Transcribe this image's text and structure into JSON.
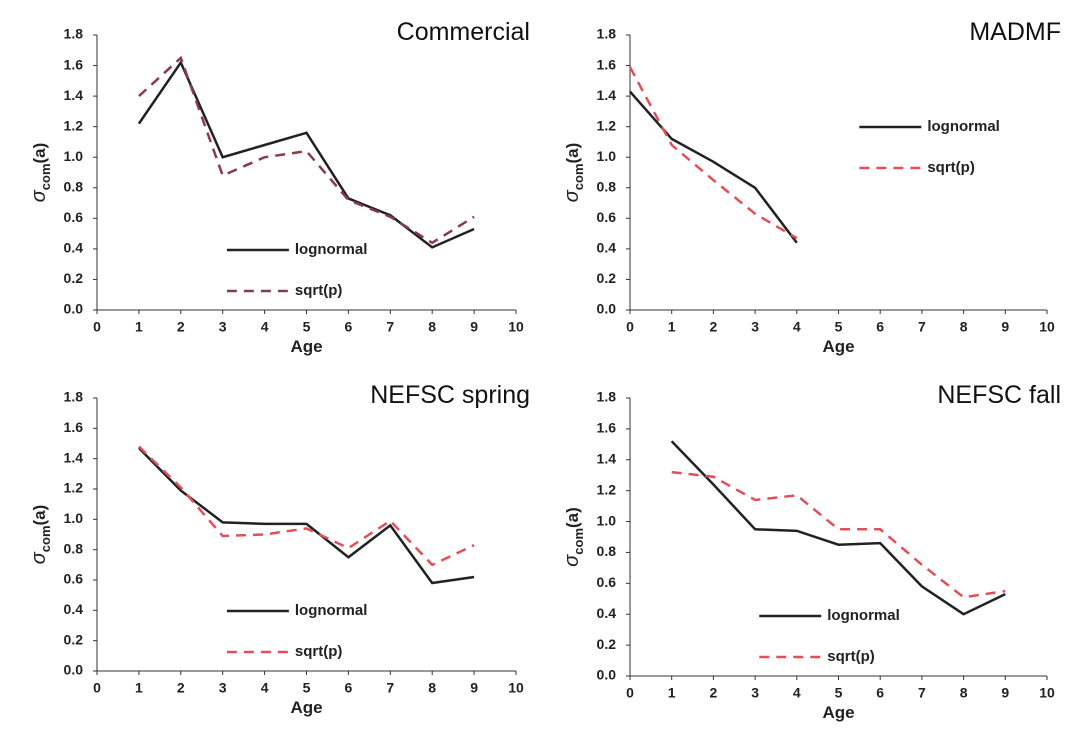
{
  "chart_data": [
    {
      "type": "line",
      "title": "Commercial",
      "x_label": "Age",
      "y_label": [
        "σ",
        "com",
        "(a)"
      ],
      "legend": "lower center",
      "xlim": [
        0,
        10
      ],
      "xticks": [
        0,
        1,
        2,
        3,
        4,
        5,
        6,
        7,
        8,
        9,
        10
      ],
      "ylim": [
        0,
        1.8
      ],
      "yticks": [
        {
          "value": 0,
          "label": "0.0"
        },
        {
          "value": 0.2,
          "label": "0.2"
        },
        {
          "value": 0.4,
          "label": "0.4"
        },
        {
          "value": 0.6,
          "label": "0.6"
        },
        {
          "value": 0.8,
          "label": "0.8"
        },
        {
          "value": 1,
          "label": "1.0"
        },
        {
          "value": 1.2,
          "label": "1.2"
        },
        {
          "value": 1.4,
          "label": "1.4"
        },
        {
          "value": 1.6,
          "label": "1.6"
        },
        {
          "value": 1.8,
          "label": "1.8"
        }
      ],
      "x": [
        1,
        2,
        3,
        4,
        5,
        6,
        7,
        8,
        9
      ],
      "series": [
        {
          "name": "lognormal",
          "color": "#222222",
          "dashed": false,
          "values": [
            1.22,
            1.62,
            1.0,
            1.08,
            1.16,
            0.73,
            0.62,
            0.41,
            0.53
          ]
        },
        {
          "name": "sqrt(p)",
          "color": "#8b3a48",
          "dashed": true,
          "values": [
            1.4,
            1.65,
            0.88,
            1.0,
            1.04,
            0.72,
            0.61,
            0.44,
            0.61
          ]
        }
      ]
    },
    {
      "type": "line",
      "title": "MADMF",
      "x_label": "Age",
      "y_label": [
        "σ",
        "com",
        "(a)"
      ],
      "legend": "upper right",
      "xlim": [
        0,
        10
      ],
      "xticks": [
        0,
        1,
        2,
        3,
        4,
        5,
        6,
        7,
        8,
        9,
        10
      ],
      "ylim": [
        0,
        1.8
      ],
      "yticks": [
        {
          "value": 0,
          "label": "0.0"
        },
        {
          "value": 0.2,
          "label": "0.2"
        },
        {
          "value": 0.4,
          "label": "0.4"
        },
        {
          "value": 0.6,
          "label": "0.6"
        },
        {
          "value": 0.8,
          "label": "0.8"
        },
        {
          "value": 1,
          "label": "1.0"
        },
        {
          "value": 1.2,
          "label": "1.2"
        },
        {
          "value": 1.4,
          "label": "1.4"
        },
        {
          "value": 1.6,
          "label": "1.6"
        },
        {
          "value": 1.8,
          "label": "1.8"
        }
      ],
      "x": [
        0,
        1,
        2,
        3,
        4
      ],
      "series": [
        {
          "name": "lognormal",
          "color": "#222222",
          "dashed": false,
          "values": [
            1.43,
            1.12,
            0.97,
            0.8,
            0.44
          ]
        },
        {
          "name": "sqrt(p)",
          "color": "#e0505a",
          "dashed": true,
          "values": [
            1.59,
            1.08,
            0.85,
            0.63,
            0.47
          ]
        }
      ]
    },
    {
      "type": "line",
      "title": "NEFSC spring",
      "x_label": "Age",
      "y_label": [
        "σ",
        "com",
        "(a)"
      ],
      "legend": "lower center",
      "xlim": [
        0,
        10
      ],
      "xticks": [
        0,
        1,
        2,
        3,
        4,
        5,
        6,
        7,
        8,
        9,
        10
      ],
      "ylim": [
        0,
        1.8
      ],
      "yticks": [
        {
          "value": 0,
          "label": "0.0"
        },
        {
          "value": 0.2,
          "label": "0.2"
        },
        {
          "value": 0.4,
          "label": "0.4"
        },
        {
          "value": 0.6,
          "label": "0.6"
        },
        {
          "value": 0.8,
          "label": "0.8"
        },
        {
          "value": 1,
          "label": "1.0"
        },
        {
          "value": 1.2,
          "label": "1.2"
        },
        {
          "value": 1.4,
          "label": "1.4"
        },
        {
          "value": 1.6,
          "label": "1.6"
        },
        {
          "value": 1.8,
          "label": "1.8"
        }
      ],
      "x": [
        1,
        2,
        3,
        4,
        5,
        6,
        7,
        8,
        9
      ],
      "series": [
        {
          "name": "lognormal",
          "color": "#222222",
          "dashed": false,
          "values": [
            1.47,
            1.19,
            0.98,
            0.97,
            0.97,
            0.75,
            0.96,
            0.58,
            0.62
          ]
        },
        {
          "name": "sqrt(p)",
          "color": "#e0505a",
          "dashed": true,
          "values": [
            1.48,
            1.21,
            0.89,
            0.9,
            0.94,
            0.81,
            0.99,
            0.7,
            0.83
          ]
        }
      ]
    },
    {
      "type": "line",
      "title": "NEFSC fall",
      "x_label": "Age",
      "y_label": [
        "σ",
        "com",
        "(a)"
      ],
      "legend": "lower center",
      "xlim": [
        0,
        10
      ],
      "xticks": [
        0,
        1,
        2,
        3,
        4,
        5,
        6,
        7,
        8,
        9,
        10
      ],
      "ylim": [
        0,
        1.8
      ],
      "yticks": [
        {
          "value": 0,
          "label": "0.0"
        },
        {
          "value": 0.2,
          "label": "0.2"
        },
        {
          "value": 0.4,
          "label": "0.4"
        },
        {
          "value": 0.6,
          "label": "0.6"
        },
        {
          "value": 0.8,
          "label": "0.8"
        },
        {
          "value": 1,
          "label": "1.0"
        },
        {
          "value": 1.2,
          "label": "1.2"
        },
        {
          "value": 1.4,
          "label": "1.4"
        },
        {
          "value": 1.6,
          "label": "1.6"
        },
        {
          "value": 1.8,
          "label": "1.8"
        }
      ],
      "x": [
        1,
        2,
        3,
        4,
        5,
        6,
        7,
        8,
        9
      ],
      "series": [
        {
          "name": "lognormal",
          "color": "#222222",
          "dashed": false,
          "values": [
            1.52,
            1.24,
            0.95,
            0.94,
            0.85,
            0.86,
            0.58,
            0.4,
            0.53
          ]
        },
        {
          "name": "sqrt(p)",
          "color": "#e0505a",
          "dashed": true,
          "values": [
            1.32,
            1.29,
            1.14,
            1.17,
            0.95,
            0.95,
            0.72,
            0.51,
            0.55
          ]
        }
      ]
    }
  ]
}
